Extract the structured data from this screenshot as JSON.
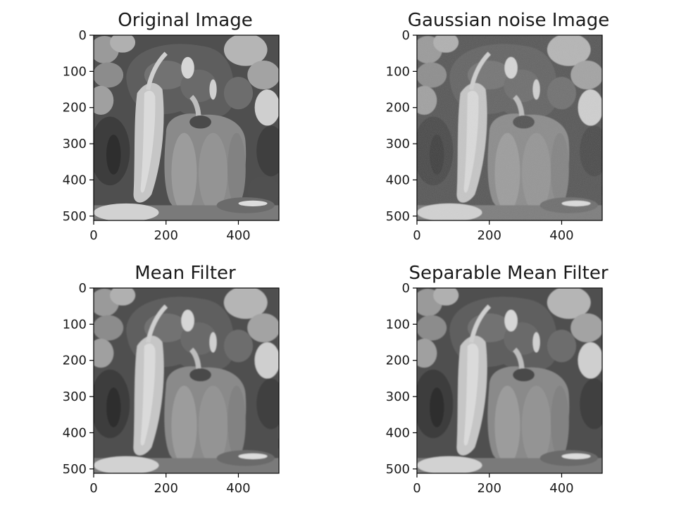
{
  "figure": {
    "subplots": [
      {
        "id": "original",
        "title": "Original Image",
        "x_ticks": [
          "0",
          "200",
          "400"
        ],
        "y_ticks": [
          "0",
          "100",
          "200",
          "300",
          "400",
          "500"
        ],
        "blur": 0,
        "noise": 0
      },
      {
        "id": "gaussian",
        "title": "Gaussian noise Image",
        "x_ticks": [
          "0",
          "200",
          "400"
        ],
        "y_ticks": [
          "0",
          "100",
          "200",
          "300",
          "400",
          "500"
        ],
        "blur": 1.2,
        "noise": 0.18
      },
      {
        "id": "mean",
        "title": "Mean Filter",
        "x_ticks": [
          "0",
          "200",
          "400"
        ],
        "y_ticks": [
          "0",
          "100",
          "200",
          "300",
          "400",
          "500"
        ],
        "blur": 1.8,
        "noise": 0
      },
      {
        "id": "separable",
        "title": "Separable Mean Filter",
        "x_ticks": [
          "0",
          "200",
          "400"
        ],
        "y_ticks": [
          "0",
          "100",
          "200",
          "300",
          "400",
          "500"
        ],
        "blur": 1.8,
        "noise": 0
      }
    ],
    "image_range": [
      0,
      512
    ],
    "colors": {
      "background": "#ffffff",
      "text": "#1a1a1a",
      "axis": "#000000",
      "pepper_dark": "#3a3a3a",
      "pepper_mid": "#6a6a6a",
      "pepper_light": "#b8b8b8",
      "highlight": "#e6e6e6"
    }
  }
}
